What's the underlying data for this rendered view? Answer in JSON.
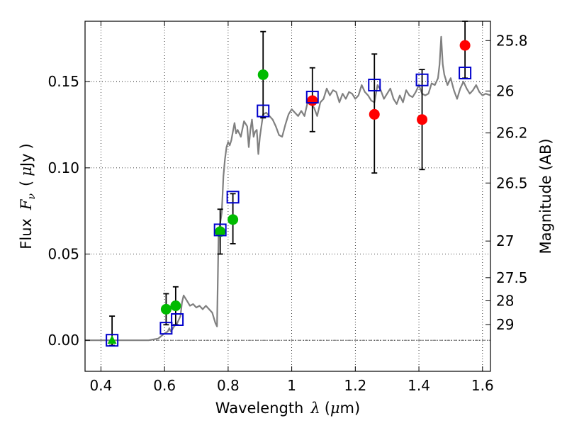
{
  "chart_data": {
    "type": "scatter",
    "title": "",
    "xlabel": {
      "prefix": "Wavelength",
      "symbol": "λ",
      "unit_open": "(",
      "unit_mu": "μ",
      "unit_rest": "m)"
    },
    "ylabel": {
      "prefix": "Flux",
      "symbol": "F",
      "subscript": "ν",
      "unit_open": "(",
      "unit_mu": "μ",
      "unit_rest": "Jy",
      "unit_close": ")"
    },
    "y2label": "Magnitude (AB)",
    "xlim": [
      0.35,
      1.625
    ],
    "ylim": [
      -0.018,
      0.185
    ],
    "grid": true,
    "x_ticks": [
      {
        "value": 0.4,
        "label": "0.4"
      },
      {
        "value": 0.6,
        "label": "0.6"
      },
      {
        "value": 0.8,
        "label": "0.8"
      },
      {
        "value": 1.0,
        "label": "1"
      },
      {
        "value": 1.2,
        "label": "1.2"
      },
      {
        "value": 1.4,
        "label": "1.4"
      },
      {
        "value": 1.6,
        "label": "1.6"
      }
    ],
    "y_ticks": [
      {
        "value": 0.0,
        "label": "0.00"
      },
      {
        "value": 0.05,
        "label": "0.05"
      },
      {
        "value": 0.1,
        "label": "0.10"
      },
      {
        "value": 0.15,
        "label": "0.15"
      }
    ],
    "mag_ticks": [
      {
        "value": 25.8,
        "label": "25.8"
      },
      {
        "value": 26.0,
        "label": "26"
      },
      {
        "value": 26.2,
        "label": "26.2"
      },
      {
        "value": 26.5,
        "label": "26.5"
      },
      {
        "value": 27.0,
        "label": "27"
      },
      {
        "value": 27.5,
        "label": "27.5"
      },
      {
        "value": 28.0,
        "label": "28"
      },
      {
        "value": 29.0,
        "label": "29"
      }
    ],
    "zero_line": 0.0,
    "model_spectrum": {
      "color": "#808080",
      "x": [
        0.35,
        0.4,
        0.45,
        0.5,
        0.55,
        0.58,
        0.6,
        0.61,
        0.615,
        0.62,
        0.63,
        0.64,
        0.65,
        0.655,
        0.66,
        0.67,
        0.68,
        0.69,
        0.7,
        0.71,
        0.72,
        0.73,
        0.74,
        0.75,
        0.76,
        0.765,
        0.77,
        0.775,
        0.78,
        0.785,
        0.79,
        0.795,
        0.8,
        0.805,
        0.81,
        0.815,
        0.82,
        0.825,
        0.83,
        0.84,
        0.85,
        0.86,
        0.865,
        0.87,
        0.875,
        0.88,
        0.885,
        0.89,
        0.895,
        0.9,
        0.91,
        0.92,
        0.93,
        0.94,
        0.95,
        0.96,
        0.97,
        0.98,
        0.99,
        1.0,
        1.01,
        1.02,
        1.03,
        1.04,
        1.05,
        1.06,
        1.07,
        1.08,
        1.09,
        1.1,
        1.11,
        1.12,
        1.13,
        1.14,
        1.15,
        1.16,
        1.17,
        1.18,
        1.19,
        1.2,
        1.21,
        1.22,
        1.23,
        1.24,
        1.25,
        1.26,
        1.27,
        1.28,
        1.29,
        1.3,
        1.31,
        1.32,
        1.33,
        1.34,
        1.35,
        1.36,
        1.37,
        1.38,
        1.39,
        1.4,
        1.41,
        1.42,
        1.43,
        1.44,
        1.45,
        1.46,
        1.465,
        1.47,
        1.475,
        1.48,
        1.49,
        1.5,
        1.51,
        1.52,
        1.53,
        1.54,
        1.55,
        1.56,
        1.57,
        1.58,
        1.59,
        1.6,
        1.61,
        1.625
      ],
      "y": [
        0.0,
        0.0,
        0.0,
        0.0,
        0.0,
        0.001,
        0.004,
        0.005,
        0.007,
        0.005,
        0.008,
        0.01,
        0.014,
        0.022,
        0.026,
        0.023,
        0.02,
        0.021,
        0.019,
        0.02,
        0.018,
        0.02,
        0.018,
        0.016,
        0.01,
        0.008,
        0.062,
        0.068,
        0.074,
        0.095,
        0.105,
        0.112,
        0.115,
        0.113,
        0.116,
        0.121,
        0.126,
        0.12,
        0.122,
        0.118,
        0.127,
        0.124,
        0.112,
        0.122,
        0.128,
        0.118,
        0.121,
        0.122,
        0.108,
        0.118,
        0.131,
        0.132,
        0.13,
        0.128,
        0.124,
        0.119,
        0.118,
        0.125,
        0.131,
        0.134,
        0.132,
        0.13,
        0.133,
        0.13,
        0.138,
        0.137,
        0.135,
        0.13,
        0.138,
        0.14,
        0.146,
        0.142,
        0.145,
        0.144,
        0.138,
        0.143,
        0.14,
        0.144,
        0.143,
        0.14,
        0.142,
        0.148,
        0.144,
        0.142,
        0.139,
        0.138,
        0.148,
        0.145,
        0.14,
        0.143,
        0.146,
        0.14,
        0.137,
        0.142,
        0.138,
        0.145,
        0.142,
        0.141,
        0.144,
        0.148,
        0.143,
        0.142,
        0.143,
        0.149,
        0.148,
        0.152,
        0.16,
        0.176,
        0.16,
        0.154,
        0.148,
        0.152,
        0.145,
        0.14,
        0.146,
        0.15,
        0.146,
        0.143,
        0.145,
        0.148,
        0.144,
        0.142,
        0.143,
        0.142
      ]
    },
    "series": [
      {
        "marker": "circle",
        "color": "#00bb00",
        "points": [
          {
            "x": 0.605,
            "y": 0.018,
            "lo": 0.009,
            "hi": 0.027
          },
          {
            "x": 0.635,
            "y": 0.02,
            "lo": 0.009,
            "hi": 0.031
          },
          {
            "x": 0.775,
            "y": 0.063
          },
          {
            "x": 0.815,
            "y": 0.07
          },
          {
            "x": 0.91,
            "y": 0.154
          }
        ]
      },
      {
        "marker": "triangle",
        "color": "#00bb00",
        "points": [
          {
            "x": 0.435,
            "y": 0.0
          }
        ]
      },
      {
        "marker": "circle",
        "color": "#ff0000",
        "points": [
          {
            "x": 1.065,
            "y": 0.139
          },
          {
            "x": 1.26,
            "y": 0.131
          },
          {
            "x": 1.41,
            "y": 0.128
          },
          {
            "x": 1.545,
            "y": 0.171
          }
        ]
      },
      {
        "marker": "square",
        "color": "#0000cc",
        "points": [
          {
            "x": 0.435,
            "y": 0.0,
            "lo": -0.003,
            "hi": 0.014
          },
          {
            "x": 0.605,
            "y": 0.007
          },
          {
            "x": 0.64,
            "y": 0.012
          },
          {
            "x": 0.775,
            "y": 0.064,
            "lo": 0.05,
            "hi": 0.076
          },
          {
            "x": 0.815,
            "y": 0.083,
            "lo": 0.056,
            "hi": 0.085
          },
          {
            "x": 0.91,
            "y": 0.133,
            "lo": 0.129,
            "hi": 0.179
          },
          {
            "x": 1.065,
            "y": 0.141,
            "lo": 0.121,
            "hi": 0.158
          },
          {
            "x": 1.26,
            "y": 0.148,
            "lo": 0.097,
            "hi": 0.166
          },
          {
            "x": 1.41,
            "y": 0.151,
            "lo": 0.099,
            "hi": 0.157
          },
          {
            "x": 1.545,
            "y": 0.155,
            "lo": 0.152,
            "hi": 0.185
          }
        ]
      }
    ]
  }
}
